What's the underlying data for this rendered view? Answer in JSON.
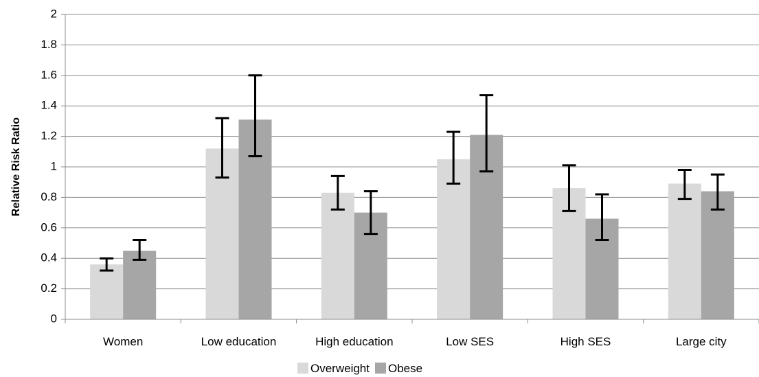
{
  "chart_data": {
    "type": "bar",
    "title": "",
    "xlabel": "",
    "ylabel": "Relative Risk Ratio",
    "ylim": [
      0,
      2
    ],
    "yticks": [
      "0",
      "0.2",
      "0.4",
      "0.6",
      "0.8",
      "1",
      "1.2",
      "1.4",
      "1.6",
      "1.8",
      "2"
    ],
    "grid": true,
    "legend_position": "bottom",
    "categories": [
      "Women",
      "Low education",
      "High education",
      "Low SES",
      "High SES",
      "Large city"
    ],
    "series": [
      {
        "name": "Overweight",
        "color": "#d9d9d9",
        "values": [
          0.36,
          1.12,
          0.83,
          1.05,
          0.86,
          0.89
        ],
        "error_low": [
          0.32,
          0.93,
          0.72,
          0.89,
          0.71,
          0.79
        ],
        "error_high": [
          0.4,
          1.32,
          0.94,
          1.23,
          1.01,
          0.98
        ]
      },
      {
        "name": "Obese",
        "color": "#a6a6a6",
        "values": [
          0.45,
          1.31,
          0.7,
          1.21,
          0.66,
          0.84
        ],
        "error_low": [
          0.39,
          1.07,
          0.56,
          0.97,
          0.52,
          0.72
        ],
        "error_high": [
          0.52,
          1.6,
          0.84,
          1.47,
          0.82,
          0.95
        ]
      }
    ]
  }
}
